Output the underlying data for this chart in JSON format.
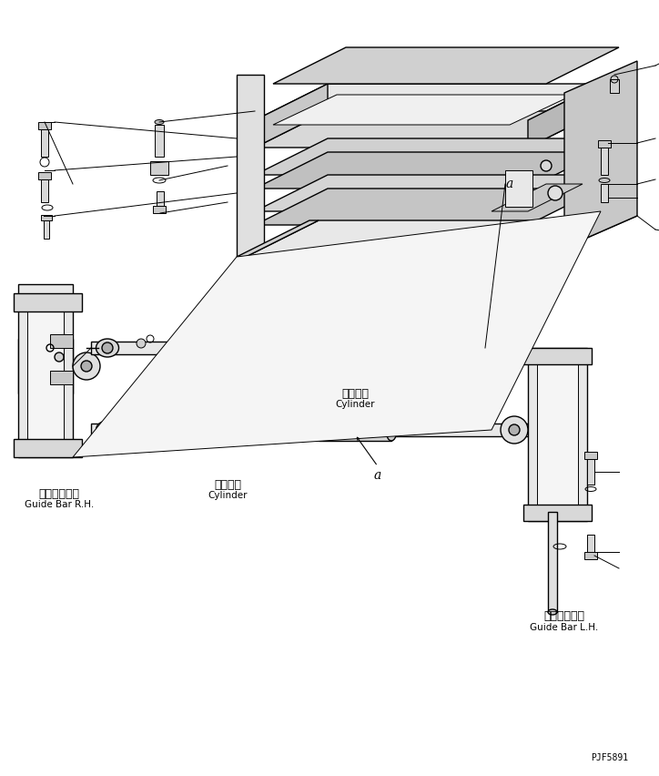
{
  "title": "",
  "background_color": "#ffffff",
  "line_color": "#000000",
  "part_label_color": "#000000",
  "watermark": "PJF5891",
  "labels": {
    "guide_bar_rh_jp": "ガイドバー右",
    "guide_bar_rh_en": "Guide Bar R.H.",
    "guide_bar_lh_jp": "ガイドバー左",
    "guide_bar_lh_en": "Guide Bar L.H.",
    "cylinder_jp_1": "シリンダ",
    "cylinder_en_1": "Cylinder",
    "cylinder_jp_2": "シリンダ",
    "cylinder_en_2": "Cylinder",
    "label_a1": "a",
    "label_a2": "a"
  },
  "fig_width": 7.24,
  "fig_height": 8.52,
  "dpi": 100
}
